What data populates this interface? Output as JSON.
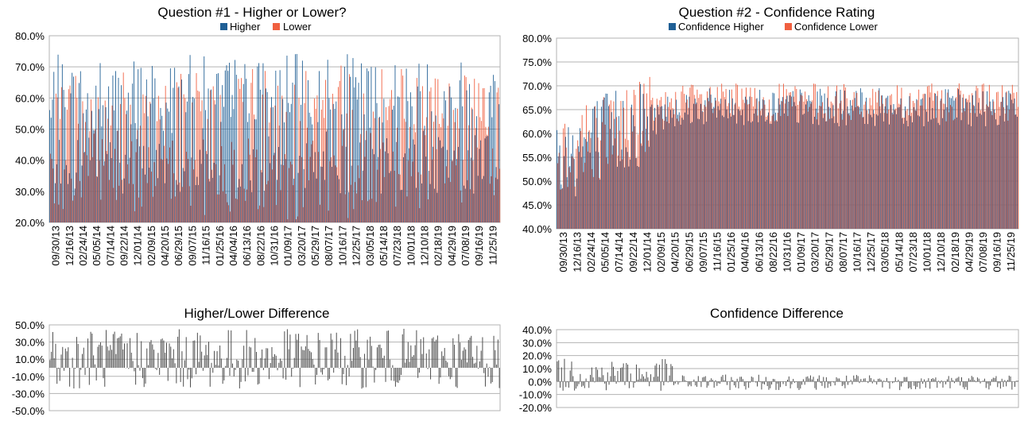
{
  "colors": {
    "higher": "#1f5f95",
    "lower": "#f06040",
    "diff": "#4d4d4d",
    "grid": "#b3b3b3",
    "frame": "#b3b3b3"
  },
  "charts": {
    "q1": {
      "title": "Question #1 - Higher or Lower?",
      "legend": [
        "Higher",
        "Lower"
      ],
      "yticks": [
        "80.0%",
        "70.0%",
        "60.0%",
        "50.0%",
        "40.0%",
        "30.0%",
        "20.0%"
      ],
      "xticks": [
        "09/30/13",
        "12/16/13",
        "02/24/14",
        "05/05/14",
        "07/14/14",
        "09/22/14",
        "12/01/14",
        "02/09/15",
        "04/20/15",
        "06/29/15",
        "09/07/15",
        "11/16/15",
        "01/25/16",
        "04/04/16",
        "06/13/16",
        "08/22/16",
        "10/31/16",
        "01/09/17",
        "03/20/17",
        "05/29/17",
        "08/07/17",
        "10/16/17",
        "12/25/17",
        "03/05/18",
        "05/14/18",
        "07/23/18",
        "10/01/18",
        "12/10/18",
        "02/18/19",
        "04/29/19",
        "07/08/19",
        "09/16/19",
        "11/25/19"
      ]
    },
    "q2": {
      "title": "Question #2 - Confidence Rating",
      "legend": [
        "Confidence Higher",
        "Confidence Lower"
      ],
      "yticks": [
        "80.0%",
        "75.0%",
        "70.0%",
        "65.0%",
        "60.0%",
        "55.0%",
        "50.0%",
        "45.0%",
        "40.0%"
      ],
      "xticks": [
        "09/30/13",
        "12/16/13",
        "02/24/14",
        "05/05/14",
        "07/14/14",
        "09/22/14",
        "12/01/14",
        "02/09/15",
        "04/20/15",
        "06/29/15",
        "09/07/15",
        "11/16/15",
        "01/25/16",
        "04/04/16",
        "06/13/16",
        "08/22/16",
        "10/31/16",
        "01/09/17",
        "03/20/17",
        "05/29/17",
        "08/07/17",
        "10/16/17",
        "12/25/17",
        "03/05/18",
        "05/14/18",
        "07/23/18",
        "10/01/18",
        "12/10/18",
        "02/18/19",
        "04/29/19",
        "07/08/19",
        "09/16/19",
        "11/25/19"
      ]
    },
    "d1": {
      "title": "Higher/Lower Difference",
      "yticks": [
        "50.0%",
        "30.0%",
        "10.0%",
        "-10.0%",
        "-30.0%",
        "-50.0%"
      ]
    },
    "d2": {
      "title": "Confidence Difference",
      "yticks": [
        "40.0%",
        "30.0%",
        "20.0%",
        "10.0%",
        "0.0%",
        "-10.0%",
        "-20.0%"
      ]
    }
  },
  "chart_data": [
    {
      "type": "bar",
      "title": "Question #1 - Higher or Lower?",
      "ylim": [
        0.2,
        0.8
      ],
      "weeks": 321,
      "series": [
        {
          "name": "Higher",
          "pattern": "mean 0.55, noisy weekly"
        },
        {
          "name": "Lower",
          "pattern": "complement of Higher"
        }
      ],
      "grid": true,
      "legend": "top-center"
    },
    {
      "type": "bar",
      "title": "Question #2 - Confidence Rating",
      "ylim": [
        0.4,
        0.8
      ],
      "weeks": 321,
      "series": [
        {
          "name": "Confidence Higher"
        },
        {
          "name": "Confidence Lower"
        }
      ],
      "grid": true,
      "legend": "top-center"
    },
    {
      "type": "bar",
      "title": "Higher/Lower Difference",
      "ylim": [
        -0.5,
        0.5
      ],
      "weeks": 321
    },
    {
      "type": "bar",
      "title": "Confidence Difference",
      "ylim": [
        -0.2,
        0.4
      ],
      "weeks": 321
    }
  ]
}
